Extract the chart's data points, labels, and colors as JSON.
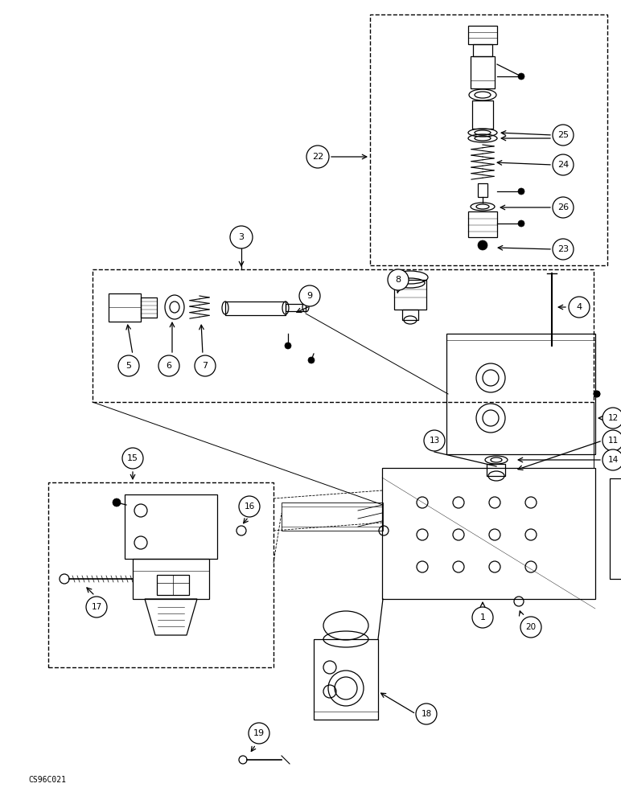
{
  "bg_color": "#ffffff",
  "line_color": "#000000",
  "lw": 0.9,
  "fig_w": 7.72,
  "fig_h": 10.0,
  "dpi": 100,
  "watermark": "CS96C021"
}
